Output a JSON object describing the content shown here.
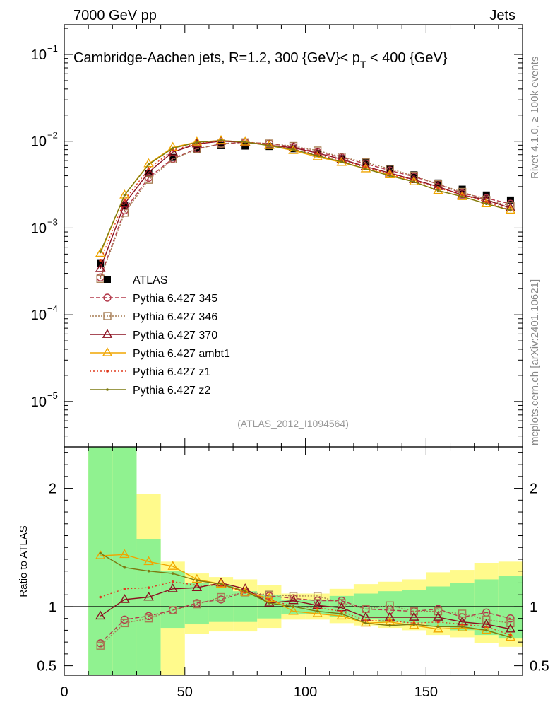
{
  "header": {
    "left": "7000 GeV pp",
    "right": "Jets"
  },
  "side_labels": {
    "rivet": "Rivet 4.1.0, ≥ 100k events",
    "mcplots": "mcplots.cern.ch [arXiv:2401.10621]"
  },
  "chart_data": [
    {
      "type": "line",
      "panel": "main",
      "title": "Cambridge-Aachen jets, R=1.2, 300 {GeV}< p_T < 400 {GeV}",
      "title_main": "Cambridge-Aachen jets, R=1.2, 300 {GeV}< p",
      "title_sub": "T",
      "title_tail": " < 400 {GeV}",
      "analysis_id": "(ATLAS_2012_I1094564)",
      "yscale": "log",
      "ylim": [
        3e-06,
        0.22
      ],
      "xlim": [
        0,
        190
      ],
      "ytick_labels": {
        "m5": "−5",
        "m4": "−4",
        "m3": "−3",
        "m2": "−2",
        "m1": "−1",
        "base": "10"
      },
      "x": [
        15,
        25,
        35,
        45,
        55,
        65,
        75,
        85,
        95,
        105,
        115,
        125,
        135,
        145,
        155,
        165,
        175,
        185
      ],
      "series": [
        {
          "name": "ATLAS",
          "color": "#000000",
          "marker": "square-filled",
          "dash": "none",
          "values": [
            0.00039,
            0.0018,
            0.0042,
            0.0065,
            0.0081,
            0.0089,
            0.0088,
            0.0087,
            0.0082,
            0.0072,
            0.0063,
            0.0057,
            0.0048,
            0.0041,
            0.0033,
            0.0028,
            0.0024,
            0.0021
          ]
        },
        {
          "name": "Pythia 6.427 345",
          "color": "#b3394a",
          "marker": "circle",
          "dash": "6,3",
          "values": [
            0.00027,
            0.0016,
            0.0038,
            0.0063,
            0.0082,
            0.0093,
            0.0097,
            0.0094,
            0.0086,
            0.0075,
            0.0065,
            0.0055,
            0.0046,
            0.0039,
            0.0032,
            0.0025,
            0.0022,
            0.0019
          ]
        },
        {
          "name": "Pythia 6.427 346",
          "color": "#a67c52",
          "marker": "square",
          "dash": "2,2",
          "values": [
            0.00026,
            0.0015,
            0.0036,
            0.0062,
            0.0081,
            0.0094,
            0.0097,
            0.0094,
            0.0088,
            0.0078,
            0.0066,
            0.0057,
            0.0048,
            0.004,
            0.0032,
            0.0026,
            0.0021,
            0.0018
          ]
        },
        {
          "name": "Pythia 6.427 370",
          "color": "#8b1020",
          "marker": "triangle",
          "dash": "none",
          "values": [
            0.00034,
            0.0019,
            0.0044,
            0.0075,
            0.0093,
            0.01,
            0.0097,
            0.009,
            0.0084,
            0.0073,
            0.0062,
            0.0051,
            0.0043,
            0.0036,
            0.003,
            0.0024,
            0.0021,
            0.0017
          ]
        },
        {
          "name": "Pythia 6.427 ambt1",
          "color": "#f0a500",
          "marker": "triangle",
          "dash": "none",
          "values": [
            0.00051,
            0.0024,
            0.0055,
            0.0085,
            0.0098,
            0.0102,
            0.0098,
            0.0089,
            0.0078,
            0.0066,
            0.0057,
            0.0048,
            0.0041,
            0.0034,
            0.0027,
            0.0023,
            0.0019,
            0.0016
          ]
        },
        {
          "name": "Pythia 6.427 z1",
          "color": "#e03a1e",
          "marker": "dot",
          "dash": "2,3",
          "values": [
            0.00042,
            0.0021,
            0.0048,
            0.0079,
            0.0095,
            0.0101,
            0.0099,
            0.0091,
            0.0081,
            0.007,
            0.006,
            0.005,
            0.0042,
            0.0035,
            0.0029,
            0.0024,
            0.002,
            0.0016
          ]
        },
        {
          "name": "Pythia 6.427 z2",
          "color": "#7c7a10",
          "marker": "dot",
          "dash": "none",
          "values": [
            0.00053,
            0.0024,
            0.0054,
            0.0083,
            0.0097,
            0.0102,
            0.0098,
            0.0089,
            0.008,
            0.0068,
            0.0058,
            0.0048,
            0.004,
            0.0034,
            0.0027,
            0.0023,
            0.0019,
            0.0016
          ]
        }
      ]
    },
    {
      "type": "line",
      "panel": "ratio",
      "ylabel": "Ratio to ATLAS",
      "ylim": [
        0.42,
        2.35
      ],
      "xlim": [
        0,
        190
      ],
      "yticks": [
        0.5,
        1,
        2
      ],
      "ytick_labels": [
        "0.5",
        "1",
        "2"
      ],
      "xticks": [
        0,
        50,
        100,
        150
      ],
      "xtick_labels": [
        "0",
        "50",
        "100",
        "150"
      ],
      "bands": {
        "edges": [
          10,
          20,
          30,
          40,
          50,
          60,
          70,
          80,
          90,
          100,
          110,
          120,
          130,
          140,
          150,
          160,
          170,
          180,
          190
        ],
        "stat_lo": [
          0.42,
          0.42,
          0.42,
          0.82,
          0.85,
          0.87,
          0.87,
          0.9,
          0.94,
          0.94,
          0.91,
          0.89,
          0.87,
          0.86,
          0.83,
          0.8,
          0.76,
          0.73
        ],
        "stat_hi": [
          2.35,
          2.35,
          1.57,
          1.3,
          1.2,
          1.18,
          1.13,
          1.1,
          1.06,
          1.06,
          1.09,
          1.11,
          1.13,
          1.14,
          1.17,
          1.2,
          1.23,
          1.26
        ],
        "total_lo": [
          0.42,
          0.42,
          0.42,
          0.42,
          0.77,
          0.79,
          0.79,
          0.82,
          0.89,
          0.89,
          0.86,
          0.84,
          0.82,
          0.8,
          0.76,
          0.74,
          0.69,
          0.66
        ],
        "total_hi": [
          2.35,
          2.35,
          1.95,
          1.38,
          1.28,
          1.25,
          1.23,
          1.18,
          1.11,
          1.11,
          1.15,
          1.19,
          1.21,
          1.23,
          1.29,
          1.31,
          1.37,
          1.38
        ],
        "stat_color": "#90f290",
        "total_color": "#fffa8c"
      },
      "series": [
        {
          "name": "Pythia 6.427 345",
          "values": [
            0.69,
            0.89,
            0.92,
            0.97,
            1.03,
            1.06,
            1.12,
            1.09,
            1.07,
            1.05,
            1.05,
            0.98,
            0.97,
            0.96,
            0.98,
            0.91,
            0.95,
            0.9
          ]
        },
        {
          "name": "Pythia 6.427 346",
          "values": [
            0.67,
            0.86,
            0.9,
            0.97,
            1.02,
            1.08,
            1.12,
            1.1,
            1.09,
            1.09,
            1.03,
            0.98,
            1.01,
            0.96,
            0.96,
            0.94,
            0.89,
            0.86
          ]
        },
        {
          "name": "Pythia 6.427 370",
          "values": [
            0.92,
            1.06,
            1.08,
            1.15,
            1.16,
            1.2,
            1.15,
            1.03,
            1.05,
            1.01,
            0.99,
            0.91,
            0.91,
            0.91,
            0.91,
            0.87,
            0.85,
            0.81
          ]
        },
        {
          "name": "Pythia 6.427 ambt1",
          "values": [
            1.43,
            1.44,
            1.38,
            1.34,
            1.23,
            1.19,
            1.12,
            1.07,
            0.96,
            0.94,
            0.92,
            0.86,
            0.87,
            0.84,
            0.81,
            0.82,
            0.8,
            0.74
          ]
        },
        {
          "name": "Pythia 6.427 z1",
          "values": [
            1.08,
            1.15,
            1.16,
            1.21,
            1.18,
            1.18,
            1.12,
            1.06,
            1.0,
            0.99,
            0.96,
            0.88,
            0.88,
            0.86,
            0.87,
            0.85,
            0.83,
            0.76
          ]
        },
        {
          "name": "Pythia 6.427 z2",
          "values": [
            1.45,
            1.33,
            1.3,
            1.28,
            1.22,
            1.19,
            1.13,
            1.03,
            1.0,
            0.96,
            0.94,
            0.86,
            0.84,
            0.85,
            0.83,
            0.83,
            0.8,
            0.74
          ]
        }
      ]
    }
  ]
}
